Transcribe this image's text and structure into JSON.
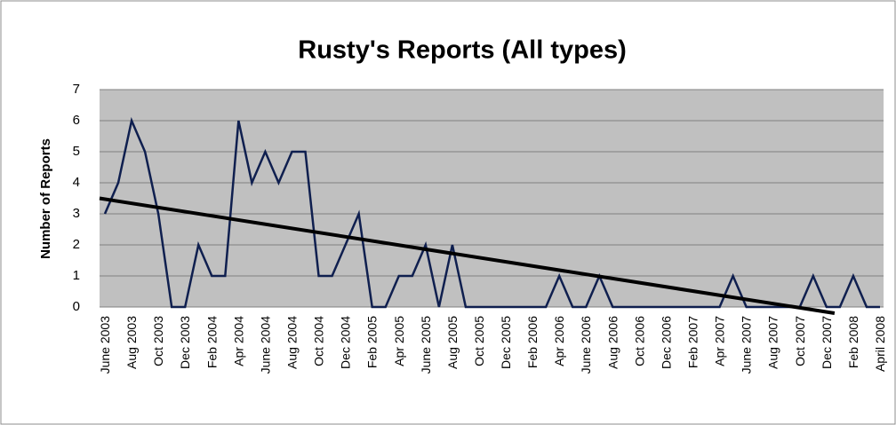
{
  "chart_data": {
    "type": "line",
    "title": "Rusty's Reports (All types)",
    "y_label": "Number of Reports",
    "categories": [
      "June 2003",
      null,
      "Aug 2003",
      null,
      "Oct 2003",
      null,
      "Dec 2003",
      null,
      "Feb 2004",
      null,
      "Apr 2004",
      null,
      "June 2004",
      null,
      "Aug 2004",
      null,
      "Oct 2004",
      null,
      "Dec 2004",
      null,
      "Feb 2005",
      null,
      "Apr 2005",
      null,
      "June 2005",
      null,
      "Aug 2005",
      null,
      "Oct 2005",
      null,
      "Dec 2005",
      null,
      "Feb 2006",
      null,
      "Apr 2006",
      null,
      "June 2006",
      null,
      "Aug 2006",
      null,
      "Oct 2006",
      null,
      "Dec 2006",
      null,
      "Feb 2007",
      null,
      "Apr 2007",
      null,
      "June 2007",
      null,
      "Aug 2007",
      null,
      "Oct 2007",
      null,
      "Dec 2007",
      null,
      "Feb 2008",
      null,
      "April 2008"
    ],
    "values": [
      3,
      4,
      6,
      5,
      3,
      0,
      0,
      2,
      1,
      1,
      6,
      4,
      5,
      4,
      5,
      5,
      1,
      1,
      2,
      3,
      0,
      0,
      1,
      1,
      2,
      0,
      2,
      0,
      0,
      0,
      0,
      0,
      0,
      0,
      1,
      0,
      0,
      1,
      0,
      0,
      0,
      0,
      0,
      0,
      0,
      0,
      0,
      1,
      0,
      0,
      0,
      0,
      0,
      1,
      0,
      0,
      1,
      0,
      0
    ],
    "color": "#0f1f4f",
    "trendline": {
      "x": [
        -0.4,
        54.6
      ],
      "values": [
        3.5,
        -0.2
      ],
      "color": "#000000"
    },
    "ylim": [
      0,
      7
    ],
    "yticks": [
      0,
      1,
      2,
      3,
      4,
      5,
      6,
      7
    ],
    "grid": true
  }
}
